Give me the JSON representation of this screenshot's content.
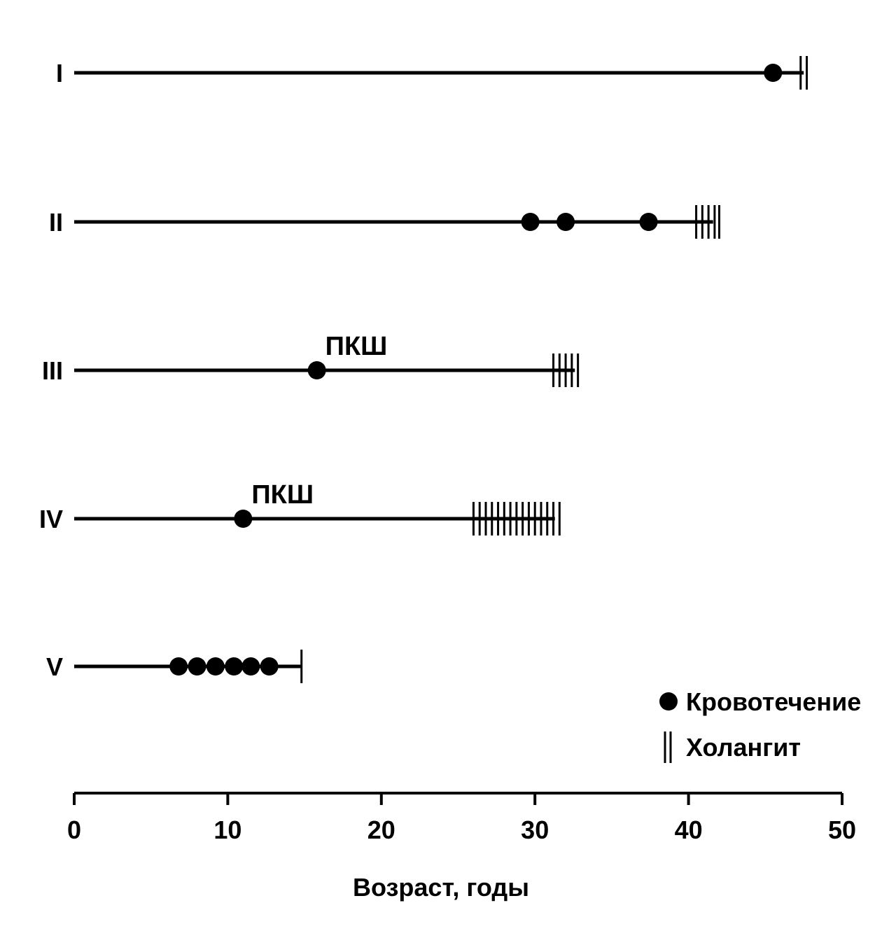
{
  "chart_data": {
    "type": "timeline",
    "xlabel": "Возраст, годы",
    "xlim": [
      0,
      50
    ],
    "xticks": [
      0,
      10,
      20,
      30,
      40,
      50
    ],
    "legend": {
      "position": "bottom-right",
      "items": [
        {
          "symbol": "dot",
          "label": "Кровотечение"
        },
        {
          "symbol": "double-bar",
          "label": "Холангит"
        }
      ]
    },
    "rows": [
      {
        "label": "I",
        "end": 47.5,
        "bleeding": [
          45.5
        ],
        "cholangitis": [
          47.3,
          47.7
        ],
        "annotations": []
      },
      {
        "label": "II",
        "end": 41.6,
        "bleeding": [
          29.7,
          32.0,
          37.4
        ],
        "cholangitis": [
          40.5,
          40.9,
          41.3,
          41.7,
          42.0
        ],
        "annotations": []
      },
      {
        "label": "III",
        "end": 32.6,
        "bleeding": [
          15.8
        ],
        "cholangitis": [
          31.2,
          31.6,
          32.0,
          32.4,
          32.8
        ],
        "annotations": [
          {
            "text": "ПКШ",
            "x": 15.8
          }
        ]
      },
      {
        "label": "IV",
        "end": 31.3,
        "bleeding": [
          11.0
        ],
        "cholangitis": [
          26.0,
          26.4,
          26.8,
          27.2,
          27.6,
          28.0,
          28.4,
          28.8,
          29.2,
          29.6,
          30.0,
          30.4,
          30.8,
          31.2,
          31.6
        ],
        "annotations": [
          {
            "text": "ПКШ",
            "x": 11.0
          }
        ]
      },
      {
        "label": "V",
        "end": 14.8,
        "bleeding": [
          6.8,
          8.0,
          9.2,
          10.4,
          11.5,
          12.7
        ],
        "cholangitis": [
          14.8
        ],
        "annotations": []
      }
    ]
  }
}
